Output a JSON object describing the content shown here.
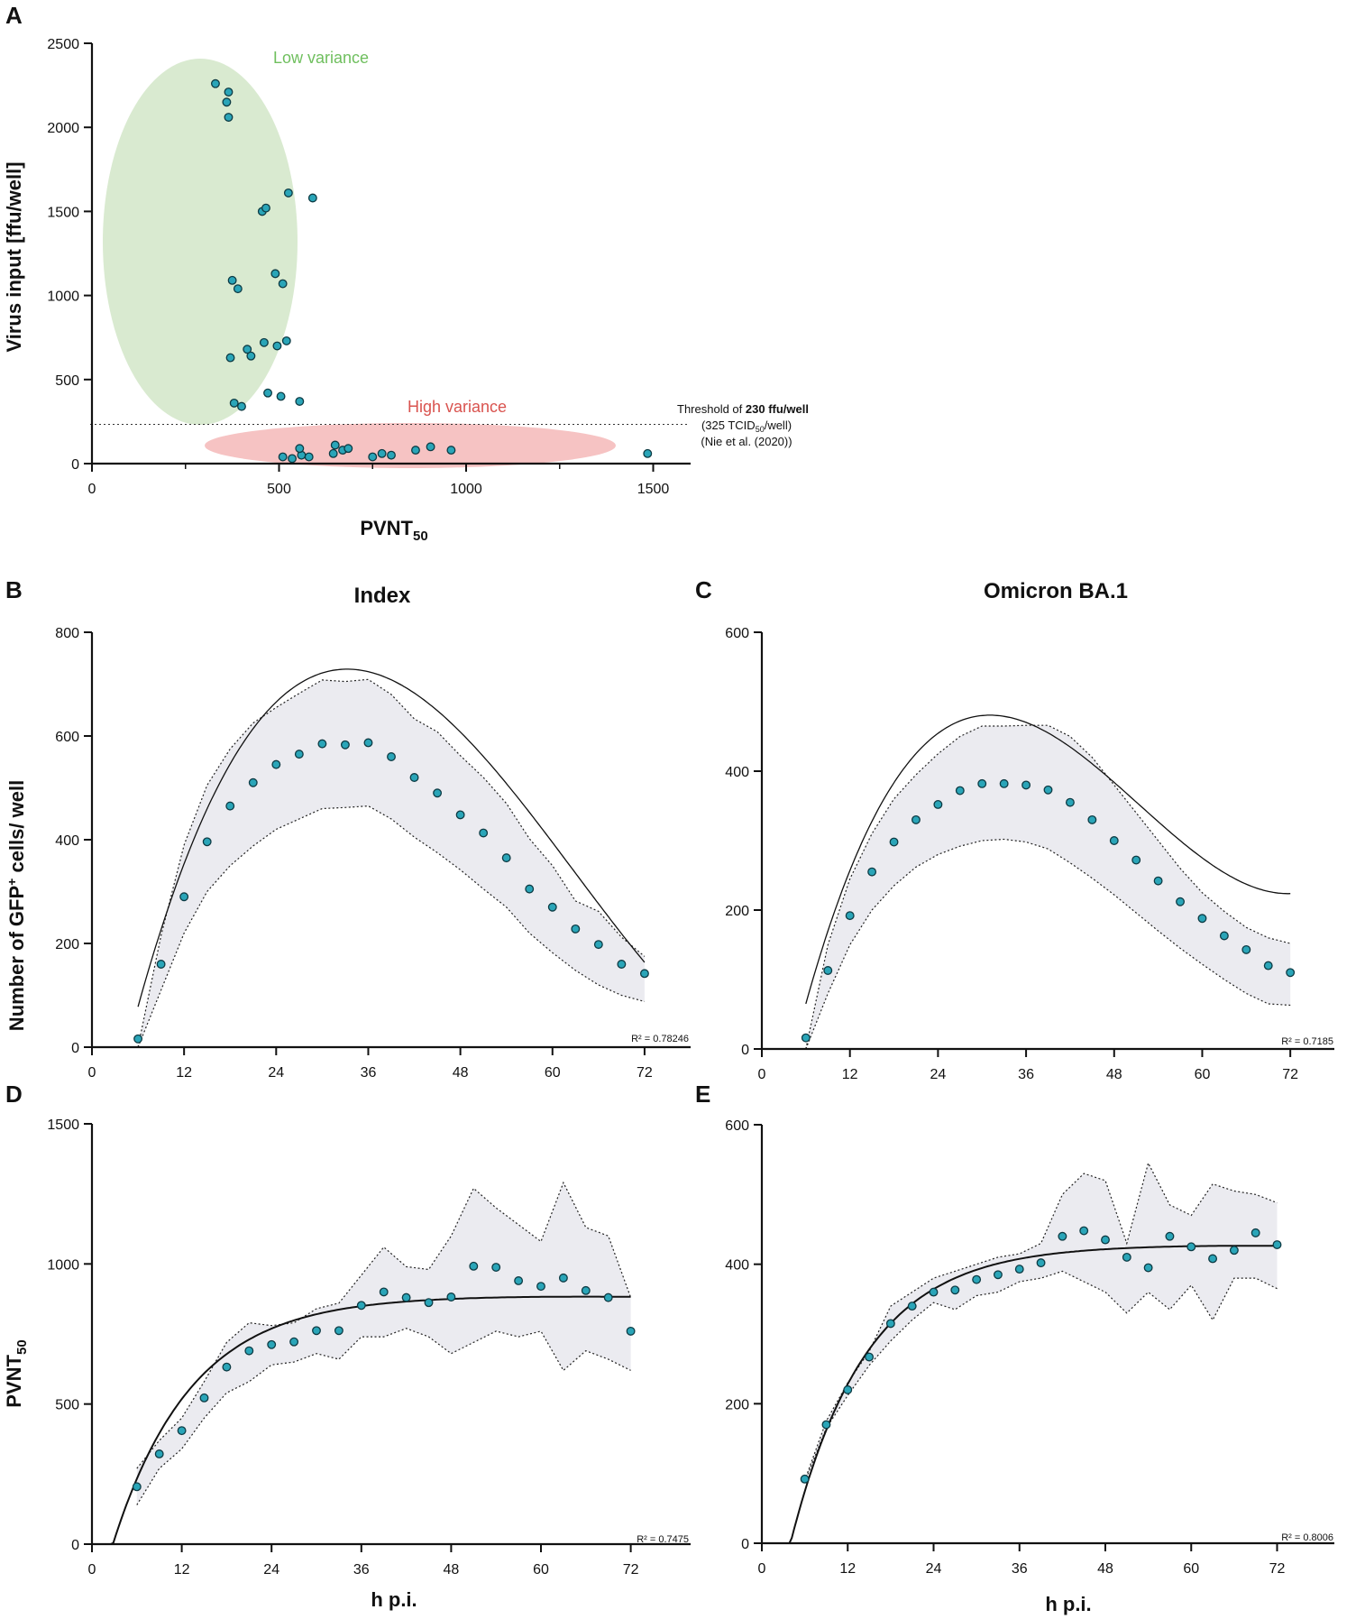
{
  "colors": {
    "point_fill": "#2aa5b8",
    "point_stroke": "#0d3b44",
    "band_fill": "#ebebf0",
    "low_variance_fill": "#d9ead0",
    "low_variance_text": "#6fbf5e",
    "high_variance_fill": "#f6c3c3",
    "high_variance_text": "#d9534f"
  },
  "chart_data": [
    {
      "id": "A",
      "panel": "A",
      "type": "scatter",
      "title": "",
      "xlabel": "PVNT",
      "xlabel_sub": "50",
      "ylabel": "Virus input [ffu/well]",
      "xlim": [
        0,
        1600
      ],
      "ylim": [
        0,
        2500
      ],
      "xticks": [
        0,
        500,
        1000,
        1500
      ],
      "yticks": [
        0,
        500,
        1000,
        1500,
        2000,
        2500
      ],
      "points": [
        [
          330,
          2260
        ],
        [
          365,
          2210
        ],
        [
          360,
          2150
        ],
        [
          365,
          2060
        ],
        [
          455,
          1500
        ],
        [
          465,
          1520
        ],
        [
          525,
          1610
        ],
        [
          590,
          1580
        ],
        [
          490,
          1130
        ],
        [
          510,
          1070
        ],
        [
          375,
          1090
        ],
        [
          390,
          1040
        ],
        [
          460,
          720
        ],
        [
          520,
          730
        ],
        [
          495,
          700
        ],
        [
          415,
          680
        ],
        [
          425,
          640
        ],
        [
          370,
          630
        ],
        [
          470,
          420
        ],
        [
          505,
          400
        ],
        [
          555,
          370
        ],
        [
          380,
          360
        ],
        [
          400,
          340
        ],
        [
          510,
          40
        ],
        [
          535,
          30
        ],
        [
          560,
          50
        ],
        [
          580,
          40
        ],
        [
          555,
          90
        ],
        [
          645,
          60
        ],
        [
          650,
          110
        ],
        [
          670,
          80
        ],
        [
          685,
          90
        ],
        [
          750,
          40
        ],
        [
          775,
          60
        ],
        [
          800,
          50
        ],
        [
          865,
          80
        ],
        [
          905,
          100
        ],
        [
          960,
          80
        ],
        [
          1485,
          60
        ]
      ],
      "regions": [
        {
          "label": "Low variance"
        },
        {
          "label": "High variance"
        }
      ],
      "threshold": {
        "value": 230,
        "line1_prefix": "Threshold of ",
        "line1_bold": "230 ffu/well",
        "line2_prefix": "(325 TCID",
        "line2_sub": "50",
        "line2_suffix": "/well)",
        "line3": "(Nie et al. (2020))"
      }
    },
    {
      "id": "B",
      "panel": "B",
      "type": "scatter",
      "title": "Index",
      "xlabel": "",
      "ylabel": "Number of GFP+ cells/ well",
      "xlim": [
        0,
        78
      ],
      "ylim": [
        0,
        800
      ],
      "xticks": [
        0,
        12,
        24,
        36,
        48,
        60,
        72
      ],
      "yticks": [
        0,
        200,
        400,
        600,
        800
      ],
      "r2": "R² = 0.78246",
      "x": [
        6,
        9,
        12,
        15,
        18,
        21,
        24,
        27,
        30,
        33,
        36,
        39,
        42,
        45,
        48,
        51,
        54,
        57,
        60,
        63,
        66,
        69,
        72
      ],
      "y": [
        16,
        160,
        290,
        396,
        465,
        510,
        545,
        565,
        585,
        583,
        587,
        560,
        520,
        490,
        448,
        413,
        365,
        305,
        270,
        228,
        198,
        160,
        142
      ],
      "upper": [
        0,
        215,
        390,
        505,
        575,
        625,
        655,
        682,
        708,
        705,
        709,
        680,
        633,
        608,
        562,
        520,
        470,
        402,
        350,
        282,
        262,
        212,
        175
      ],
      "lower": [
        0,
        110,
        220,
        300,
        350,
        388,
        420,
        440,
        460,
        462,
        465,
        440,
        405,
        375,
        342,
        305,
        270,
        220,
        182,
        148,
        120,
        100,
        88
      ],
      "fit_coef": [
        -290.24,
        69.64,
        -1.424,
        0.00756
      ],
      "fit_range": [
        6,
        72
      ]
    },
    {
      "id": "C",
      "panel": "C",
      "type": "scatter",
      "title": "Omicron BA.1",
      "xlabel": "",
      "ylabel": "",
      "xlim": [
        0,
        78
      ],
      "ylim": [
        0,
        600
      ],
      "xticks": [
        0,
        12,
        24,
        36,
        48,
        60,
        72
      ],
      "yticks": [
        0,
        200,
        400,
        600
      ],
      "r2": "R² = 0.7185",
      "x": [
        6,
        9,
        12,
        15,
        18,
        21,
        24,
        27,
        30,
        33,
        36,
        39,
        42,
        45,
        48,
        51,
        54,
        57,
        60,
        63,
        66,
        69,
        72
      ],
      "y": [
        16,
        113,
        192,
        255,
        298,
        330,
        352,
        372,
        382,
        382,
        380,
        373,
        355,
        330,
        300,
        272,
        242,
        212,
        188,
        163,
        143,
        120,
        110
      ],
      "upper": [
        0,
        150,
        245,
        310,
        360,
        395,
        425,
        450,
        465,
        465,
        466,
        466,
        450,
        420,
        380,
        340,
        300,
        260,
        225,
        198,
        175,
        160,
        152
      ],
      "lower": [
        0,
        80,
        150,
        200,
        235,
        262,
        280,
        292,
        300,
        302,
        298,
        288,
        268,
        246,
        222,
        196,
        170,
        145,
        122,
        100,
        80,
        65,
        63
      ],
      "fit_coef": [
        -202.13,
        51.37,
        -1.185,
        0.00769
      ],
      "fit_range": [
        6,
        72
      ]
    },
    {
      "id": "D",
      "panel": "D",
      "type": "scatter",
      "title": "",
      "xlabel": "h p.i.",
      "ylabel": "PVNT",
      "ylabel_sub": "50",
      "xlim": [
        0,
        80
      ],
      "ylim": [
        0,
        1500
      ],
      "xticks": [
        0,
        12,
        24,
        36,
        48,
        60,
        72
      ],
      "yticks": [
        0,
        500,
        1000,
        1500
      ],
      "r2": "R² = 0.7475",
      "x": [
        6,
        9,
        12,
        15,
        18,
        21,
        24,
        27,
        30,
        33,
        36,
        39,
        42,
        45,
        48,
        51,
        54,
        57,
        60,
        63,
        66,
        69,
        72
      ],
      "y": [
        205,
        322,
        405,
        522,
        632,
        690,
        712,
        722,
        762,
        762,
        852,
        900,
        880,
        862,
        882,
        992,
        988,
        940,
        920,
        950,
        905,
        880,
        760
      ],
      "upper": [
        270,
        370,
        450,
        580,
        720,
        790,
        780,
        790,
        840,
        860,
        960,
        1060,
        990,
        980,
        1100,
        1270,
        1200,
        1140,
        1080,
        1290,
        1130,
        1100,
        880
      ],
      "lower": [
        140,
        270,
        340,
        450,
        540,
        580,
        640,
        650,
        680,
        660,
        740,
        740,
        770,
        740,
        680,
        720,
        760,
        740,
        760,
        620,
        690,
        660,
        620
      ],
      "fit": {
        "A": 887,
        "B": 2.8,
        "k": 0.00074,
        "t0": 50
      },
      "fit_range": [
        1.8,
        72
      ]
    },
    {
      "id": "E",
      "panel": "E",
      "type": "scatter",
      "title": "",
      "xlabel": "h p.i.",
      "ylabel": "",
      "xlim": [
        0,
        80
      ],
      "ylim": [
        0,
        600
      ],
      "xticks": [
        0,
        12,
        24,
        36,
        48,
        60,
        72
      ],
      "yticks": [
        0,
        200,
        400,
        600
      ],
      "r2": "R² = 0.8006",
      "x": [
        6,
        9,
        12,
        15,
        18,
        21,
        24,
        27,
        30,
        33,
        36,
        39,
        42,
        45,
        48,
        51,
        54,
        57,
        60,
        63,
        66,
        69,
        72
      ],
      "y": [
        92,
        170,
        220,
        267,
        315,
        340,
        360,
        363,
        378,
        385,
        393,
        402,
        440,
        448,
        435,
        410,
        395,
        440,
        425,
        408,
        420,
        445,
        428
      ],
      "upper": [
        90,
        175,
        230,
        275,
        340,
        360,
        380,
        390,
        400,
        410,
        415,
        430,
        500,
        530,
        520,
        430,
        545,
        485,
        470,
        515,
        505,
        500,
        488
      ],
      "lower": [
        88,
        165,
        212,
        255,
        290,
        320,
        345,
        335,
        355,
        360,
        375,
        380,
        390,
        375,
        360,
        330,
        360,
        335,
        370,
        320,
        380,
        380,
        365
      ],
      "fit": {
        "A": 428,
        "B": 4.0,
        "k": 0.00082,
        "t0": 55
      },
      "fit_range": [
        3.5,
        72
      ]
    }
  ]
}
